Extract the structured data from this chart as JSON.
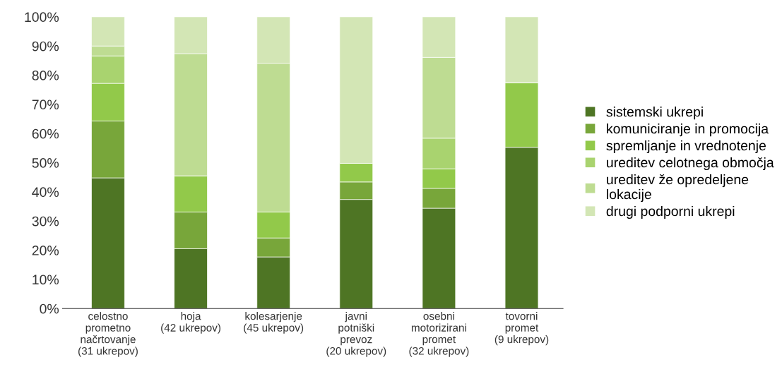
{
  "chart_data": {
    "type": "bar",
    "stacked": true,
    "categories": [
      "celostno\nprometno\nnačrtovanje\n(31 ukrepov)",
      "hoja\n(42 ukrepov)",
      "kolesarjenje\n(45 ukrepov)",
      "javni\npotniški\nprevoz\n(20 ukrepov)",
      "osebni\nmotorizirani\npromet\n(32 ukrepov)",
      "tovorni\npromet\n(9 ukrepov)"
    ],
    "series": [
      {
        "name": "sistemski ukrepi",
        "color": "#4e7524",
        "values": [
          44.8,
          20.5,
          17.7,
          37.4,
          34.4,
          55.3
        ]
      },
      {
        "name": "komuniciranje in promocija",
        "color": "#78a63a",
        "values": [
          19.5,
          12.6,
          6.5,
          6.0,
          6.8,
          0
        ]
      },
      {
        "name": "spremljanje in vrednotenje",
        "color": "#92c94a",
        "values": [
          12.9,
          12.4,
          8.9,
          6.4,
          6.7,
          22.1
        ]
      },
      {
        "name": "ureditev celotnega območja",
        "color": "#a9d36f",
        "values": [
          9.4,
          0,
          0,
          0,
          10.5,
          0
        ]
      },
      {
        "name": "ureditev že opredeljene\nlokacije",
        "color": "#bedc92",
        "values": [
          3.4,
          41.9,
          51.0,
          0,
          27.7,
          0
        ]
      },
      {
        "name": "drugi podporni ukrepi",
        "color": "#d3e6b5",
        "values": [
          10.0,
          12.6,
          15.9,
          50.2,
          13.9,
          22.6
        ]
      }
    ],
    "ylim": [
      0,
      100
    ],
    "yticks": [
      {
        "value": 0,
        "label": "0%"
      },
      {
        "value": 10,
        "label": "10%"
      },
      {
        "value": 20,
        "label": "20%"
      },
      {
        "value": 30,
        "label": "30%"
      },
      {
        "value": 40,
        "label": "40%"
      },
      {
        "value": 50,
        "label": "50%"
      },
      {
        "value": 60,
        "label": "60%"
      },
      {
        "value": 70,
        "label": "70%"
      },
      {
        "value": 80,
        "label": "80%"
      },
      {
        "value": 90,
        "label": "90%"
      },
      {
        "value": 100,
        "label": "100%"
      }
    ],
    "grid": false,
    "legend": "right"
  }
}
